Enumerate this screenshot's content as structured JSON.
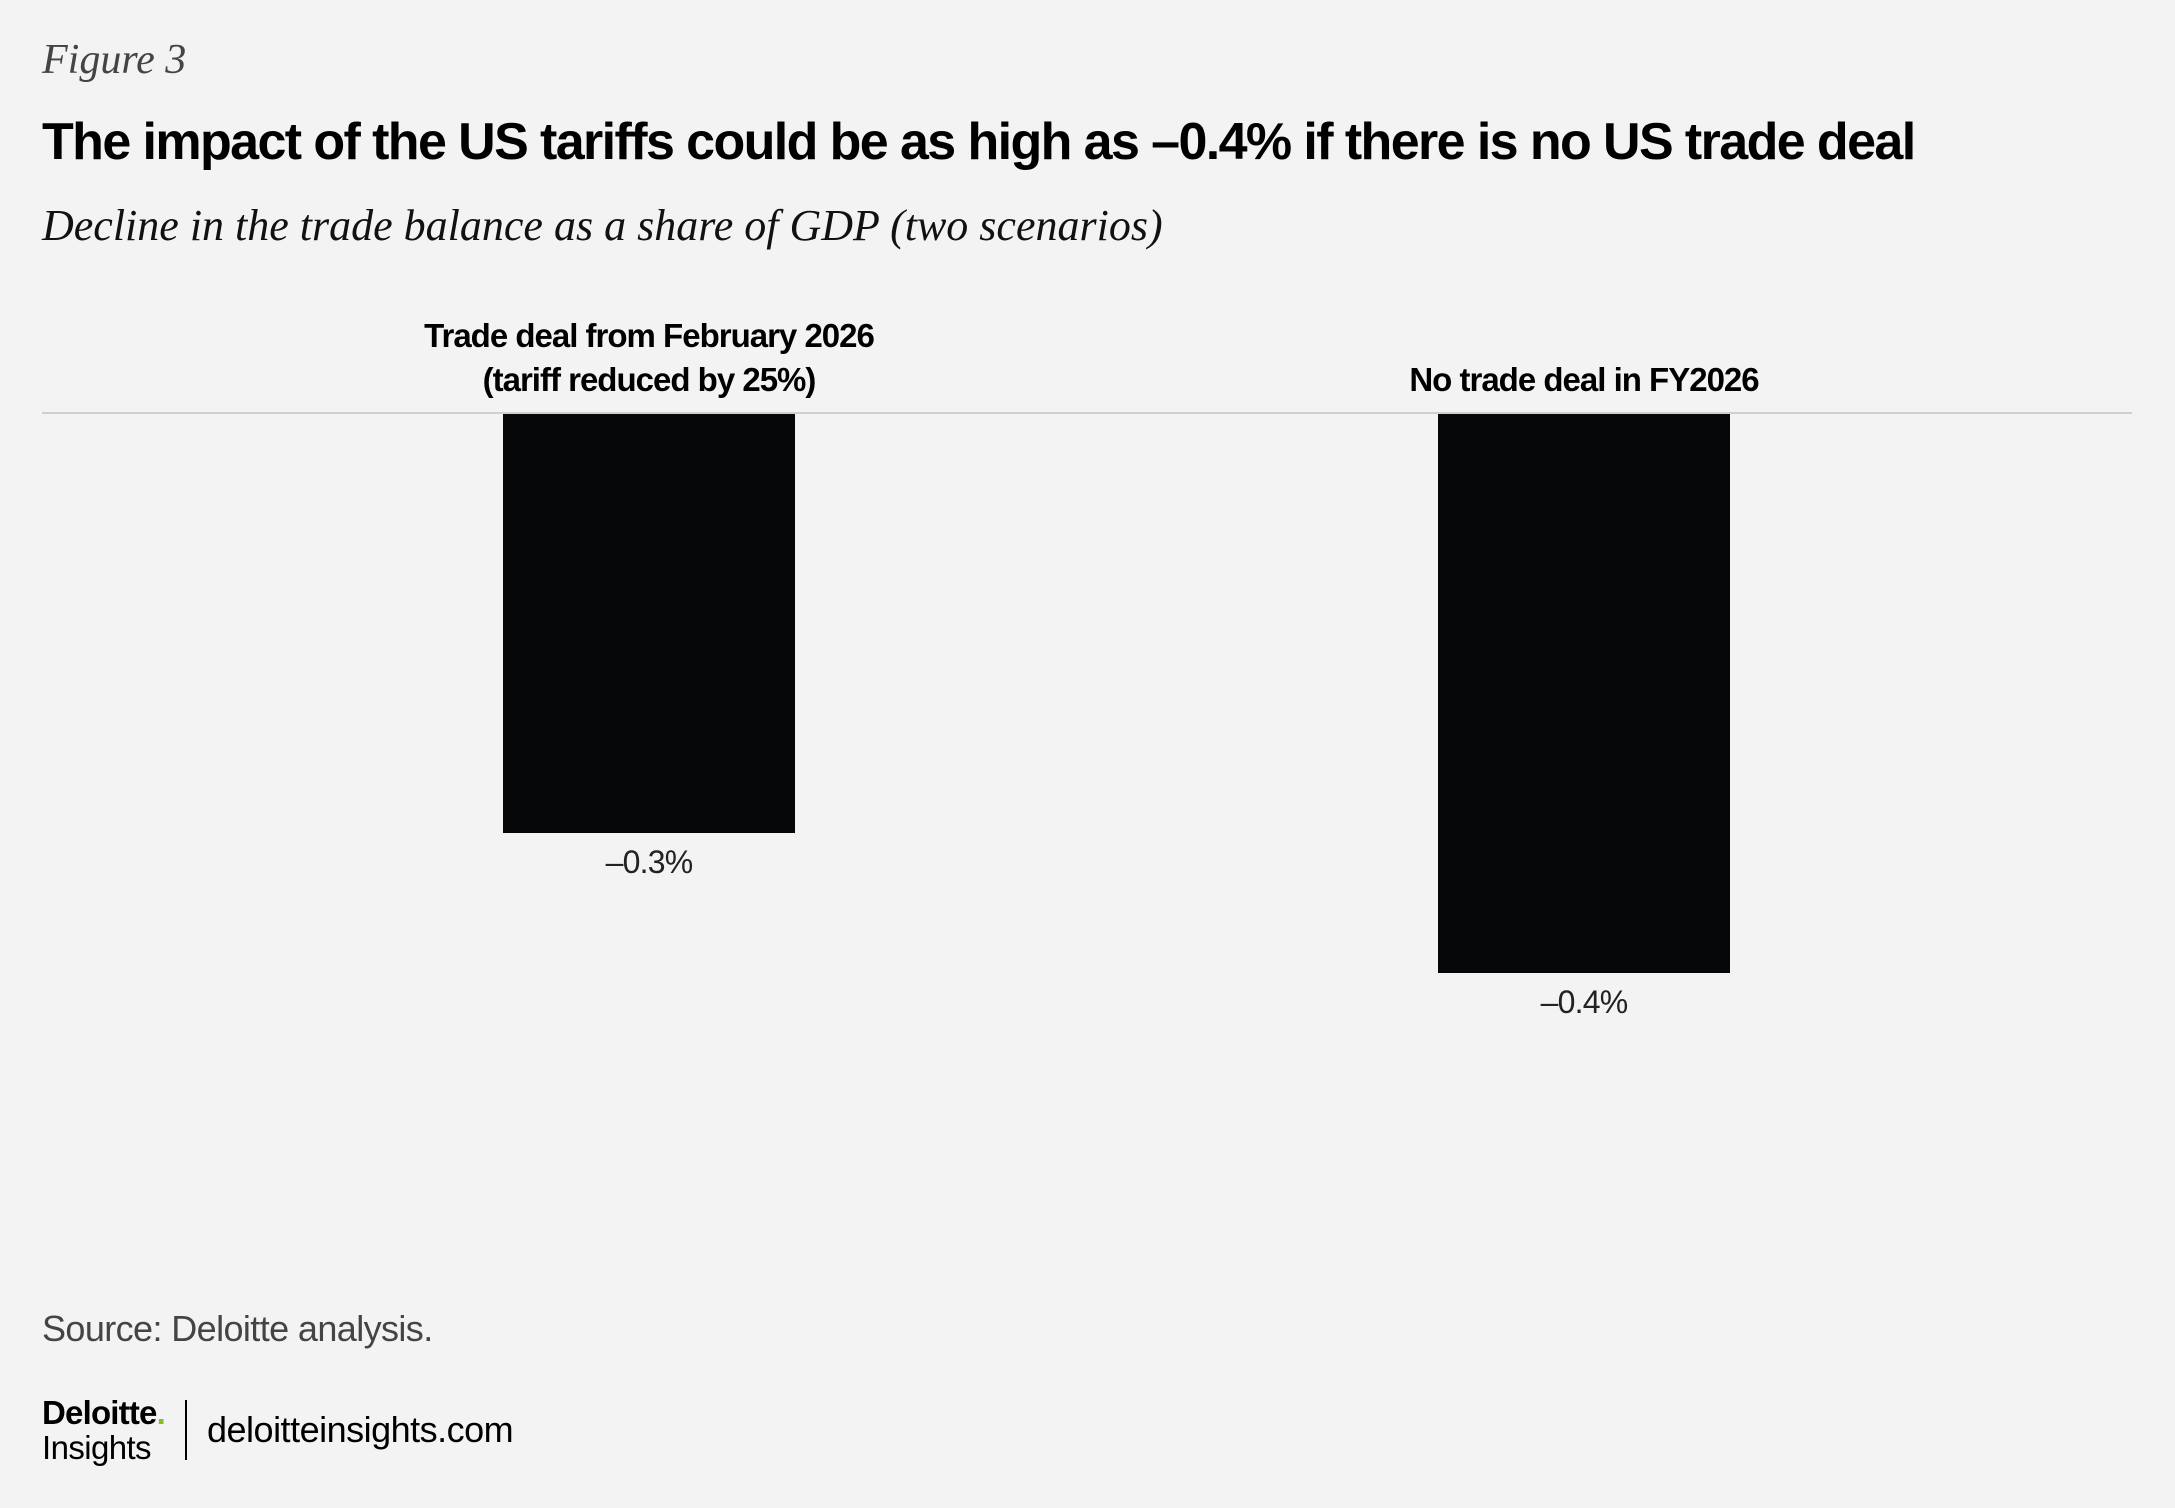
{
  "figure_label": "Figure 3",
  "title": "The impact of the US tariffs could be as high as –0.4% if there is no US trade deal",
  "subtitle": "Decline in the trade balance as a share of GDP (two scenarios)",
  "chart_data": {
    "type": "bar",
    "orientation": "vertical",
    "categories": [
      [
        "Trade deal from February 2026",
        "(tariff reduced by 25%)"
      ],
      [
        "No trade deal in FY2026"
      ]
    ],
    "values": [
      -0.3,
      -0.4
    ],
    "data_labels": [
      "–0.3%",
      "–0.4%"
    ],
    "title": "",
    "xlabel": "",
    "ylabel": "",
    "ylim": [
      -0.45,
      0
    ],
    "grid": false,
    "legend": "none",
    "bar_color": "#050708",
    "baseline_color": "#cfcfcf"
  },
  "source": "Source: Deloitte analysis.",
  "footer": {
    "logo_deloitte": "Deloitte",
    "logo_dot": ".",
    "logo_insights": "Insights",
    "url": "deloitteinsights.com"
  }
}
